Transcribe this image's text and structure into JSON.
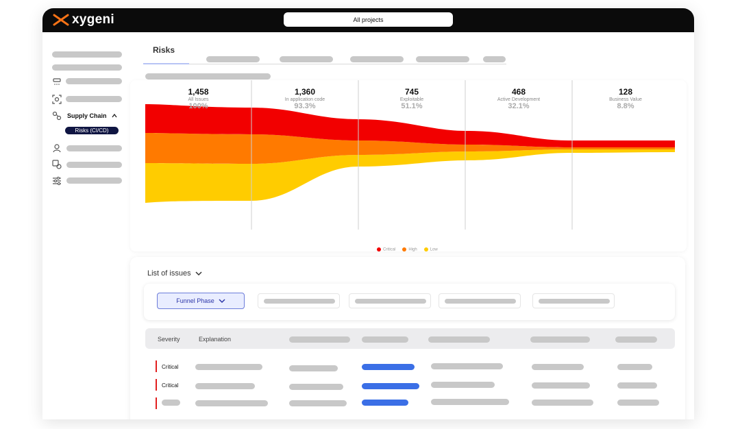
{
  "app": {
    "logo_text": "xygeni",
    "project_selector": "All projects"
  },
  "sidebar": {
    "supply_chain_label": "Supply Chain",
    "risks_ci_cd_label": "Risks (CI/CD)"
  },
  "main": {
    "active_tab": "Risks"
  },
  "funnel": {
    "stages": [
      {
        "count": "1,458",
        "label": "All Issues",
        "pct": "100%"
      },
      {
        "count": "1,360",
        "label": "In application code",
        "pct": "93.3%"
      },
      {
        "count": "745",
        "label": "Exploitable",
        "pct": "51.1%"
      },
      {
        "count": "468",
        "label": "Active Development",
        "pct": "32.1%"
      },
      {
        "count": "128",
        "label": "Business Value",
        "pct": "8.8%"
      }
    ],
    "legend": [
      {
        "name": "Critical",
        "color": "#f20000"
      },
      {
        "name": "High",
        "color": "#ff7a00"
      },
      {
        "name": "Low",
        "color": "#ffcc00"
      }
    ]
  },
  "issues": {
    "title": "List of issues",
    "filter_button": "Funnel Phase",
    "columns": {
      "severity": "Severity",
      "explanation": "Explanation"
    },
    "rows": [
      {
        "severity": "Critical"
      },
      {
        "severity": "Critical"
      }
    ]
  }
}
